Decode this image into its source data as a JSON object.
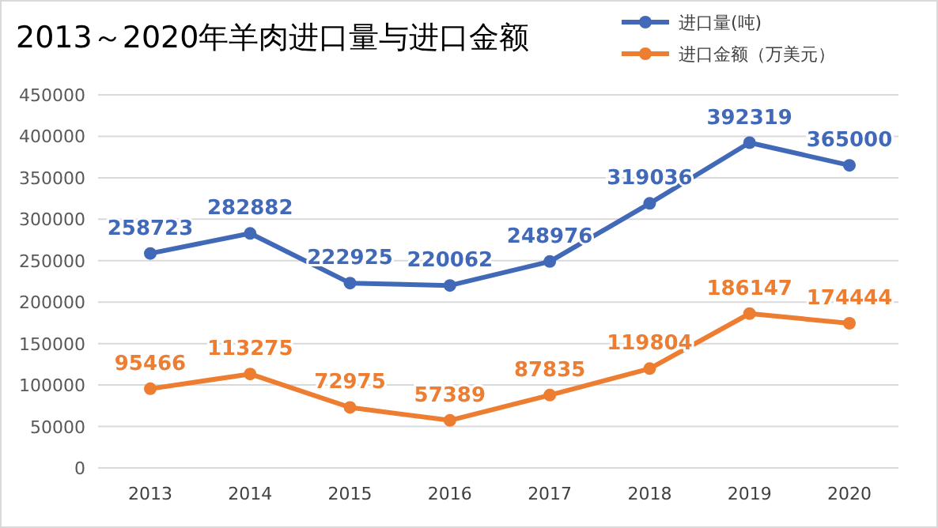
{
  "chart_data": {
    "type": "line",
    "title": "2013～2020年羊肉进口量与进口金额",
    "categories": [
      "2013",
      "2014",
      "2015",
      "2016",
      "2017",
      "2018",
      "2019",
      "2020"
    ],
    "series": [
      {
        "name": "进口量(吨)",
        "color": "#4169b8",
        "values": [
          258723,
          282882,
          222925,
          220062,
          248976,
          319036,
          392319,
          365000
        ]
      },
      {
        "name": "进口金额（万美元）",
        "color": "#ed7d31",
        "values": [
          95466,
          113275,
          72975,
          57389,
          87835,
          119804,
          186147,
          174444
        ]
      }
    ],
    "ylim": [
      0,
      450000
    ],
    "yticks": [
      0,
      50000,
      100000,
      150000,
      200000,
      250000,
      300000,
      350000,
      400000,
      450000
    ],
    "grid": "y",
    "legend": "top right",
    "marker": "circle",
    "line_style": "solid",
    "data_labels": true
  }
}
